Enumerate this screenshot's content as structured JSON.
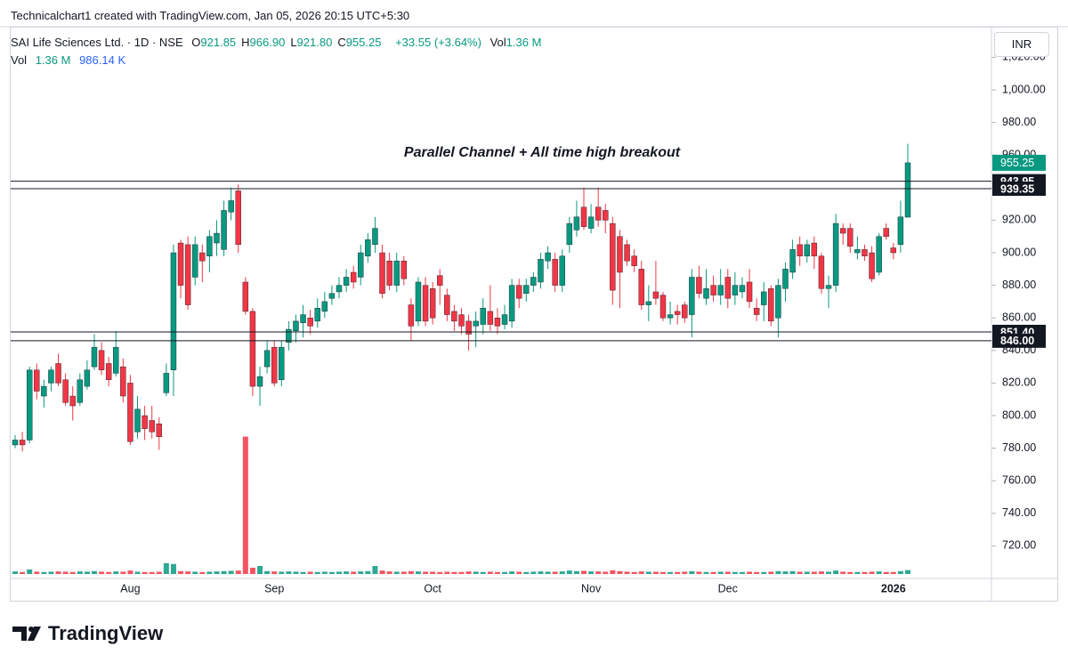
{
  "header": {
    "credit": "Technicalchart1 created with TradingView.com, Jan 05, 2026 20:15 UTC+5:30",
    "symbol": "SAI Life Sciences Ltd. · 1D · NSE",
    "ohlc": [
      {
        "key": "O",
        "value": "921.85"
      },
      {
        "key": "H",
        "value": "966.90"
      },
      {
        "key": "L",
        "value": "921.80"
      },
      {
        "key": "C",
        "value": "955.25"
      }
    ],
    "change": "+33.55 (+3.64%)",
    "volume": {
      "key": "Vol",
      "value": "1.36 M"
    },
    "indicator": {
      "name": "Vol",
      "value": "1.36 M",
      "ma": "986.14 K"
    },
    "currency": "INR"
  },
  "footer": {
    "brand": "TradingView"
  },
  "chart_data": {
    "type": "candlestick",
    "annotation": "Parallel Channel + All time high breakout",
    "up_color": "#089981",
    "down_color": "#f23645",
    "grid": false,
    "categories": [
      null,
      null,
      null,
      null,
      null,
      null,
      null,
      null,
      null,
      null,
      null,
      null,
      null,
      null,
      null,
      null,
      "Aug",
      null,
      null,
      null,
      null,
      null,
      null,
      null,
      null,
      null,
      null,
      null,
      null,
      null,
      null,
      null,
      null,
      null,
      null,
      null,
      "Sep",
      null,
      null,
      null,
      null,
      null,
      null,
      null,
      null,
      null,
      null,
      null,
      null,
      null,
      null,
      null,
      null,
      null,
      null,
      null,
      null,
      null,
      "Oct",
      null,
      null,
      null,
      null,
      null,
      null,
      null,
      null,
      null,
      null,
      null,
      null,
      null,
      null,
      null,
      null,
      null,
      null,
      null,
      null,
      null,
      "Nov",
      null,
      null,
      null,
      null,
      null,
      null,
      null,
      null,
      null,
      null,
      null,
      null,
      null,
      null,
      null,
      null,
      null,
      null,
      "Dec",
      null,
      null,
      null,
      null,
      null,
      null,
      null,
      null,
      null,
      null,
      null,
      null,
      null,
      null,
      null,
      null,
      null,
      null,
      null,
      null,
      null,
      null,
      "2026",
      null,
      null
    ],
    "open": [
      782,
      785,
      785,
      828,
      812,
      820,
      832,
      822,
      812,
      808,
      818,
      830,
      840,
      832,
      826,
      830,
      820,
      790,
      800,
      797,
      795,
      814,
      828,
      906,
      905,
      885,
      900,
      898,
      906,
      902,
      925,
      938,
      882,
      864,
      818,
      830,
      842,
      822,
      845,
      852,
      857,
      860,
      858,
      864,
      872,
      876,
      880,
      888,
      885,
      898,
      905,
      900,
      895,
      880,
      895,
      868,
      858,
      880,
      878,
      886,
      874,
      864,
      862,
      858,
      855,
      856,
      864,
      860,
      856,
      858,
      880,
      875,
      880,
      882,
      895,
      896,
      880,
      905,
      914,
      928,
      915,
      928,
      926,
      918,
      910,
      905,
      898,
      890,
      868,
      876,
      874,
      860,
      864,
      868,
      862,
      885,
      872,
      880,
      874,
      885,
      874,
      876,
      882,
      866,
      868,
      878,
      860,
      878,
      888,
      905,
      898,
      906,
      898,
      878,
      880,
      915,
      915,
      900,
      902,
      900,
      888,
      915,
      903,
      905,
      921.85
    ],
    "high": [
      788,
      790,
      830,
      832,
      822,
      830,
      838,
      826,
      818,
      826,
      834,
      850,
      845,
      836,
      852,
      835,
      825,
      812,
      806,
      806,
      799,
      832,
      905,
      908,
      910,
      910,
      905,
      914,
      920,
      932,
      940,
      942,
      885,
      866,
      830,
      846,
      846,
      846,
      858,
      862,
      868,
      865,
      872,
      876,
      880,
      885,
      890,
      892,
      905,
      912,
      922,
      905,
      900,
      900,
      898,
      872,
      885,
      885,
      882,
      890,
      878,
      868,
      866,
      862,
      864,
      872,
      880,
      866,
      868,
      884,
      884,
      884,
      888,
      900,
      904,
      900,
      902,
      922,
      932,
      940,
      930,
      940,
      930,
      922,
      914,
      908,
      902,
      895,
      880,
      895,
      876,
      870,
      868,
      870,
      890,
      892,
      890,
      886,
      890,
      890,
      888,
      885,
      890,
      872,
      882,
      880,
      884,
      894,
      908,
      910,
      908,
      910,
      900,
      886,
      924,
      918,
      918,
      910,
      905,
      904,
      912,
      918,
      906,
      932,
      966.9
    ],
    "low": [
      780,
      778,
      783,
      810,
      805,
      815,
      818,
      806,
      797,
      806,
      816,
      828,
      825,
      818,
      824,
      808,
      782,
      786,
      785,
      786,
      779,
      812,
      812,
      872,
      865,
      880,
      882,
      888,
      898,
      898,
      920,
      900,
      862,
      812,
      806,
      826,
      818,
      818,
      840,
      845,
      848,
      850,
      854,
      860,
      868,
      872,
      876,
      878,
      880,
      894,
      900,
      872,
      877,
      876,
      880,
      846,
      855,
      855,
      856,
      868,
      858,
      852,
      850,
      840,
      842,
      850,
      852,
      850,
      853,
      854,
      866,
      870,
      876,
      878,
      890,
      876,
      876,
      900,
      910,
      914,
      912,
      916,
      912,
      868,
      866,
      892,
      888,
      865,
      858,
      868,
      858,
      856,
      856,
      857,
      848,
      872,
      868,
      870,
      868,
      866,
      868,
      872,
      866,
      858,
      858,
      855,
      848,
      870,
      884,
      892,
      894,
      890,
      875,
      866,
      876,
      905,
      900,
      896,
      895,
      882,
      886,
      908,
      896,
      900,
      921.8
    ],
    "close": [
      785,
      782,
      828,
      815,
      818,
      828,
      820,
      808,
      806,
      822,
      828,
      842,
      828,
      822,
      842,
      812,
      784,
      804,
      792,
      790,
      787,
      826,
      900,
      880,
      868,
      905,
      895,
      910,
      912,
      926,
      932,
      905,
      864,
      818,
      824,
      840,
      820,
      842,
      853,
      858,
      862,
      855,
      866,
      870,
      875,
      880,
      885,
      882,
      900,
      908,
      915,
      875,
      880,
      895,
      884,
      855,
      882,
      858,
      860,
      880,
      862,
      858,
      855,
      850,
      858,
      866,
      856,
      855,
      862,
      880,
      872,
      880,
      885,
      896,
      900,
      880,
      898,
      918,
      922,
      916,
      922,
      920,
      920,
      877,
      888,
      895,
      892,
      868,
      870,
      872,
      860,
      862,
      862,
      860,
      885,
      875,
      878,
      874,
      880,
      872,
      880,
      880,
      870,
      862,
      876,
      858,
      880,
      890,
      902,
      898,
      905,
      898,
      878,
      880,
      918,
      912,
      904,
      902,
      898,
      884,
      910,
      910,
      900,
      922,
      955.25
    ],
    "volume": [
      0.9,
      0.7,
      1.6,
      0.8,
      0.7,
      0.8,
      0.9,
      0.8,
      0.7,
      0.9,
      0.8,
      1.0,
      0.8,
      0.7,
      0.9,
      0.8,
      1.2,
      0.8,
      0.7,
      0.7,
      0.8,
      3.8,
      3.5,
      1.0,
      0.9,
      0.8,
      0.7,
      0.8,
      0.9,
      1.0,
      1.1,
      1.2,
      48,
      2.2,
      2.8,
      1.0,
      0.9,
      0.8,
      0.9,
      0.8,
      0.7,
      0.8,
      0.7,
      0.8,
      0.7,
      0.8,
      0.9,
      0.8,
      0.9,
      1.0,
      2.8,
      1.2,
      0.9,
      0.8,
      0.8,
      1.0,
      0.9,
      0.8,
      0.8,
      0.7,
      0.8,
      0.7,
      0.7,
      0.9,
      0.8,
      0.7,
      0.8,
      0.7,
      0.7,
      0.9,
      0.8,
      0.7,
      0.8,
      0.9,
      0.8,
      0.8,
      0.9,
      1.2,
      1.0,
      1.1,
      0.9,
      0.9,
      0.8,
      1.3,
      1.0,
      0.8,
      0.7,
      0.9,
      0.8,
      0.8,
      0.7,
      0.7,
      0.7,
      0.8,
      1.0,
      0.8,
      0.7,
      0.7,
      0.8,
      0.8,
      0.7,
      0.7,
      0.8,
      0.7,
      0.7,
      0.8,
      1.0,
      0.9,
      1.0,
      0.8,
      0.8,
      0.8,
      0.9,
      0.8,
      1.2,
      0.8,
      0.7,
      0.7,
      0.7,
      0.8,
      0.9,
      0.7,
      0.7,
      1.0,
      1.36
    ],
    "volume_lim": [
      0,
      60
    ],
    "ylim": [
      700,
      1038
    ],
    "yticks": [
      {
        "value": 720,
        "label": "720.00"
      },
      {
        "value": 740,
        "label": "740.00"
      },
      {
        "value": 760,
        "label": "760.00"
      },
      {
        "value": 780,
        "label": "780.00"
      },
      {
        "value": 800,
        "label": "800.00"
      },
      {
        "value": 820,
        "label": "820.00"
      },
      {
        "value": 840,
        "label": "840.00"
      },
      {
        "value": 860,
        "label": "860.00"
      },
      {
        "value": 880,
        "label": "880.00"
      },
      {
        "value": 900,
        "label": "900.00"
      },
      {
        "value": 920,
        "label": "920.00"
      },
      {
        "value": 940,
        "label": "940.00"
      },
      {
        "value": 960,
        "label": "960.00"
      },
      {
        "value": 980,
        "label": "980.00"
      },
      {
        "value": 1000,
        "label": "1,000.00"
      },
      {
        "value": 1020,
        "label": "1,020.00"
      }
    ],
    "levels": [
      943.95,
      939.35,
      {
        "value": 851.4,
        "label": "851.40"
      },
      {
        "value": 846,
        "label": "846.00"
      }
    ]
  }
}
